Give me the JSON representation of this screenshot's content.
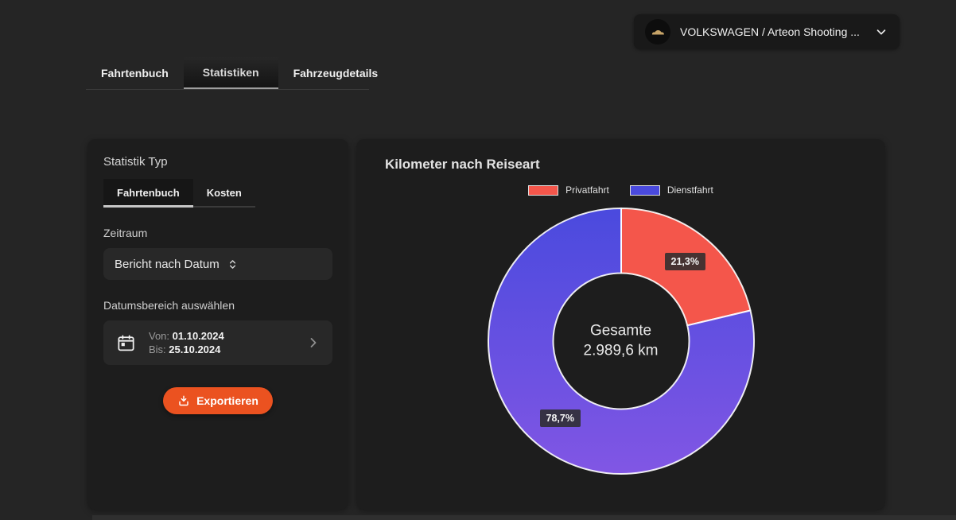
{
  "theme": {
    "accent": "#eb5220",
    "page_bg": "#252525",
    "card_bg": "#1d1d1d"
  },
  "header": {
    "vehicle_selector": {
      "label": "VOLKSWAGEN / Arteon Shooting ..."
    }
  },
  "tabs": [
    {
      "label": "Fahrtenbuch",
      "active": false
    },
    {
      "label": "Statistiken",
      "active": true
    },
    {
      "label": "Fahrzeugdetails",
      "active": false
    }
  ],
  "filters": {
    "type_section_label": "Statistik Typ",
    "type_tabs": [
      {
        "label": "Fahrtenbuch",
        "active": true
      },
      {
        "label": "Kosten",
        "active": false
      }
    ],
    "period_label": "Zeitraum",
    "period_value": "Bericht nach Datum",
    "date_section_label": "Datumsbereich auswählen",
    "date_from_label": "Von:",
    "date_from_value": "01.10.2024",
    "date_to_label": "Bis:",
    "date_to_value": "25.10.2024",
    "export_label": "Exportieren"
  },
  "chart_data": {
    "type": "pie",
    "donut": true,
    "title": "Kilometer nach Reiseart",
    "center_label": "Gesamte",
    "center_value": "2.989,6 km",
    "legend_position": "top",
    "slices": [
      {
        "key": "privatfahrt",
        "label": "Privatfahrt",
        "percent": 21.3,
        "percent_label": "21,3%",
        "color": "#f4564b",
        "color_bottom": "#f4564b"
      },
      {
        "key": "dienstfahrt",
        "label": "Dienstfahrt",
        "percent": 78.7,
        "percent_label": "78,7%",
        "color": "#4a4ade",
        "color_bottom": "#8156e4"
      }
    ]
  }
}
